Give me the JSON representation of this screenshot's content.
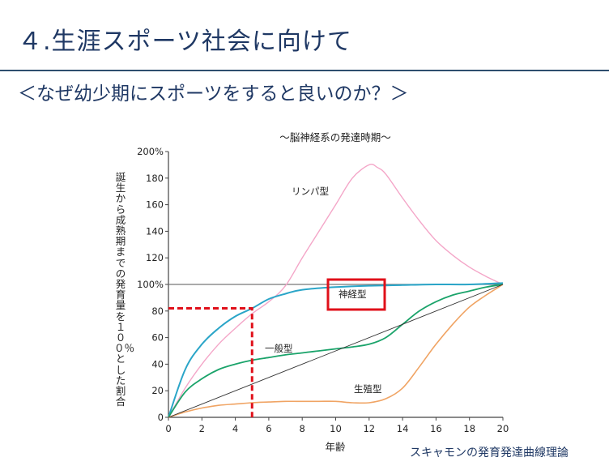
{
  "slide": {
    "title": "４.生涯スポーツ社会に向けて",
    "subtitle": "＜なぜ幼少期にスポーツをすると良いのか？＞",
    "source": "スキャモンの発育発達曲線理論"
  },
  "colors": {
    "title": "#1f3864",
    "highlight": "#e0101a",
    "lymph": "#f4a6c8",
    "neural": "#2aa5c8",
    "general": "#1aa36a",
    "reproductive": "#f0a464",
    "reference": "#333333"
  },
  "chart_data": {
    "type": "line",
    "title": "～脳神経系の発達時期～",
    "xlabel": "年齢",
    "ylabel": "誕生から成熟期までの発育量を１００％とした割合",
    "xlim": [
      0,
      20
    ],
    "ylim": [
      0,
      200
    ],
    "x_ticks": [
      "0",
      "2",
      "4",
      "6",
      "8",
      "10",
      "12",
      "14",
      "16",
      "18",
      "20"
    ],
    "y_ticks": [
      "0",
      "20",
      "40",
      "60",
      "80",
      "100%",
      "120",
      "140",
      "160",
      "180",
      "200%"
    ],
    "grid": false,
    "series": [
      {
        "name": "リンパ型",
        "color": "#f4a6c8",
        "x": [
          0,
          1,
          2,
          3,
          4,
          5,
          6,
          7,
          8,
          9,
          10,
          11,
          12,
          12.5,
          13,
          14,
          15,
          16,
          17,
          18,
          19,
          20
        ],
        "y": [
          0,
          22,
          40,
          55,
          67,
          78,
          87,
          99,
          120,
          140,
          160,
          180,
          190,
          188,
          183,
          165,
          148,
          133,
          122,
          113,
          106,
          100
        ]
      },
      {
        "name": "神経型",
        "color": "#2aa5c8",
        "x": [
          0,
          1,
          2,
          3,
          4,
          5,
          6,
          7,
          8,
          10,
          12,
          14,
          16,
          18,
          20
        ],
        "y": [
          0,
          36,
          55,
          67,
          76,
          82,
          89,
          93,
          96,
          98,
          99,
          99.5,
          100,
          100,
          101
        ]
      },
      {
        "name": "一般型",
        "color": "#1aa36a",
        "x": [
          0,
          1,
          2,
          3,
          4,
          5,
          6,
          7,
          8,
          9,
          10,
          11,
          12,
          13,
          14,
          15,
          16,
          17,
          18,
          19,
          20
        ],
        "y": [
          0,
          19,
          29,
          36,
          40,
          43,
          45,
          47,
          48.5,
          50,
          51.5,
          53,
          55,
          60,
          70,
          80,
          87,
          92,
          95,
          98,
          100
        ]
      },
      {
        "name": "生殖型",
        "color": "#f0a464",
        "x": [
          0,
          1,
          2,
          3,
          4,
          5,
          6,
          7,
          8,
          9,
          10,
          11,
          12,
          13,
          14,
          15,
          16,
          17,
          18,
          19,
          20
        ],
        "y": [
          0,
          4,
          7,
          9,
          10,
          11,
          11.5,
          12,
          12,
          12,
          12,
          11,
          11,
          14,
          22,
          38,
          55,
          70,
          83,
          92,
          100
        ]
      },
      {
        "name": "",
        "color": "#333333",
        "x": [
          0,
          20
        ],
        "y": [
          0,
          100
        ]
      }
    ],
    "reference_line": {
      "y": 100
    },
    "annotation": {
      "x": 5,
      "y": 82
    }
  }
}
